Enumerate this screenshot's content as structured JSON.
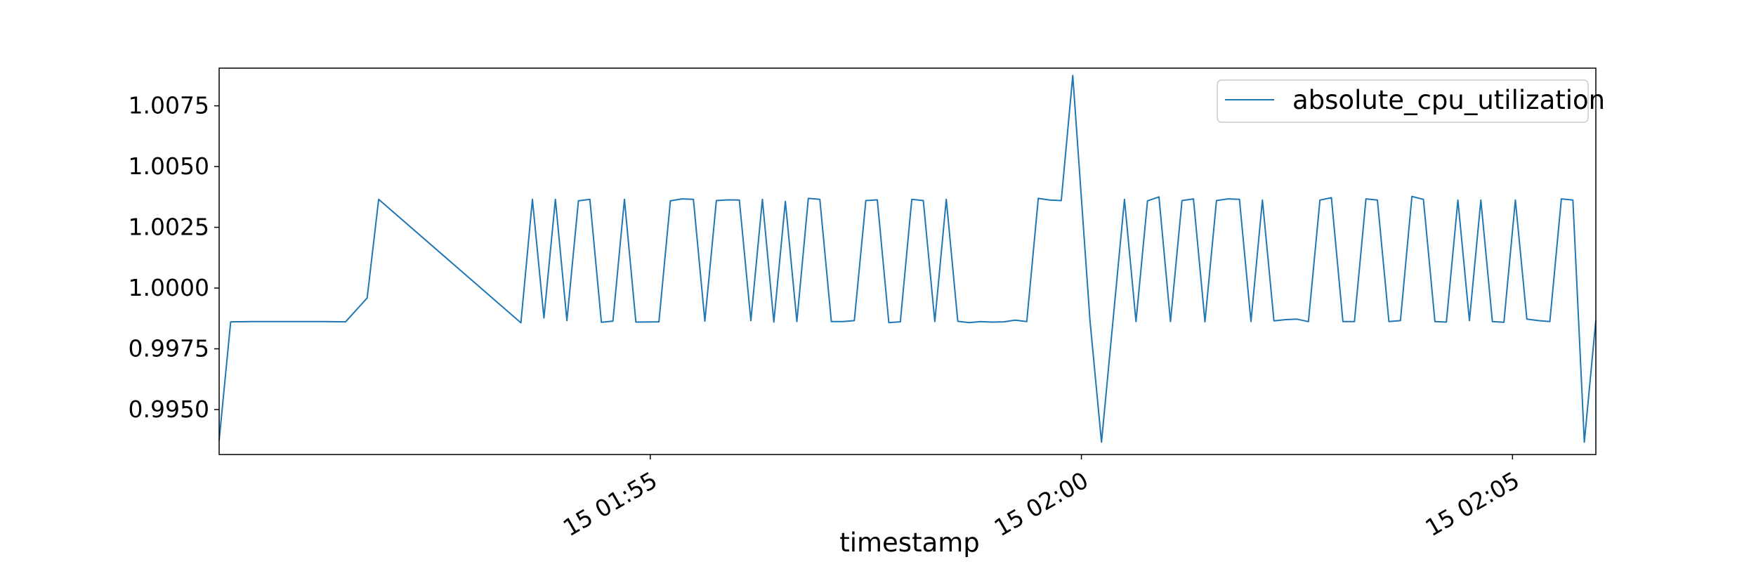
{
  "chart_data": {
    "type": "line",
    "title": "",
    "xlabel": "timestamp",
    "ylabel": "",
    "legend_position": "top-right",
    "grid": false,
    "x_tick_labels": [
      "15 01:55",
      "15 02:00",
      "15 02:05"
    ],
    "y_tick_labels": [
      "0.9950",
      "0.9975",
      "1.0000",
      "1.0025",
      "1.0050",
      "1.0075"
    ],
    "ylim": [
      0.99315,
      1.00905
    ],
    "series": [
      {
        "name": "absolute_cpu_utilization",
        "color": "#1f77b4",
        "points": [
          [
            "01:50:00",
            0.99373
          ],
          [
            "01:50:08",
            0.99861
          ],
          [
            "01:50:24",
            0.99862
          ],
          [
            "01:50:40",
            0.99862
          ],
          [
            "01:50:56",
            0.99862
          ],
          [
            "01:51:12",
            0.99862
          ],
          [
            "01:51:28",
            0.99861
          ],
          [
            "01:51:43",
            0.99959
          ],
          [
            "01:51:51",
            1.00365
          ],
          [
            "01:53:30",
            0.99857
          ],
          [
            "01:53:38",
            1.00365
          ],
          [
            "01:53:46",
            0.99877
          ],
          [
            "01:53:54",
            1.00365
          ],
          [
            "01:54:02",
            0.99866
          ],
          [
            "01:54:10",
            1.00359
          ],
          [
            "01:54:18",
            1.00365
          ],
          [
            "01:54:26",
            0.99859
          ],
          [
            "01:54:34",
            0.99864
          ],
          [
            "01:54:42",
            1.00365
          ],
          [
            "01:54:50",
            0.9986
          ],
          [
            "01:55:06",
            0.99861
          ],
          [
            "01:55:14",
            1.00359
          ],
          [
            "01:55:22",
            1.00367
          ],
          [
            "01:55:30",
            1.00365
          ],
          [
            "01:55:38",
            0.99864
          ],
          [
            "01:55:46",
            1.0036
          ],
          [
            "01:55:54",
            1.00363
          ],
          [
            "01:56:02",
            1.00362
          ],
          [
            "01:56:10",
            0.99866
          ],
          [
            "01:56:18",
            1.00365
          ],
          [
            "01:56:26",
            0.9986
          ],
          [
            "01:56:34",
            1.00357
          ],
          [
            "01:56:42",
            0.99862
          ],
          [
            "01:56:50",
            1.00369
          ],
          [
            "01:56:58",
            1.00365
          ],
          [
            "01:57:06",
            0.99862
          ],
          [
            "01:57:14",
            0.99862
          ],
          [
            "01:57:22",
            0.99866
          ],
          [
            "01:57:30",
            1.0036
          ],
          [
            "01:57:38",
            1.00363
          ],
          [
            "01:57:46",
            0.99858
          ],
          [
            "01:57:54",
            0.99861
          ],
          [
            "01:58:02",
            1.00365
          ],
          [
            "01:58:10",
            1.0036
          ],
          [
            "01:58:18",
            0.99862
          ],
          [
            "01:58:26",
            1.00365
          ],
          [
            "01:58:34",
            0.99863
          ],
          [
            "01:58:42",
            0.99858
          ],
          [
            "01:58:50",
            0.99862
          ],
          [
            "01:58:58",
            0.9986
          ],
          [
            "01:59:06",
            0.99861
          ],
          [
            "01:59:14",
            0.99868
          ],
          [
            "01:59:22",
            0.99862
          ],
          [
            "01:59:30",
            1.00369
          ],
          [
            "01:59:38",
            1.00362
          ],
          [
            "01:59:46",
            1.0036
          ],
          [
            "01:59:54",
            1.00875
          ],
          [
            "02:00:06",
            0.99866
          ],
          [
            "02:00:14",
            0.99366
          ],
          [
            "02:00:30",
            1.00365
          ],
          [
            "02:00:38",
            0.99862
          ],
          [
            "02:00:46",
            1.00359
          ],
          [
            "02:00:54",
            1.00375
          ],
          [
            "02:01:02",
            0.99862
          ],
          [
            "02:01:10",
            1.0036
          ],
          [
            "02:01:18",
            1.00367
          ],
          [
            "02:01:26",
            0.99861
          ],
          [
            "02:01:34",
            1.0036
          ],
          [
            "02:01:42",
            1.00367
          ],
          [
            "02:01:50",
            1.00365
          ],
          [
            "02:01:58",
            0.99862
          ],
          [
            "02:02:06",
            1.00362
          ],
          [
            "02:02:14",
            0.99865
          ],
          [
            "02:02:22",
            0.9987
          ],
          [
            "02:02:30",
            0.99872
          ],
          [
            "02:02:38",
            0.99862
          ],
          [
            "02:02:46",
            1.00362
          ],
          [
            "02:02:54",
            1.00372
          ],
          [
            "02:03:02",
            0.99862
          ],
          [
            "02:03:10",
            0.99862
          ],
          [
            "02:03:18",
            1.00367
          ],
          [
            "02:03:26",
            1.00362
          ],
          [
            "02:03:34",
            0.99862
          ],
          [
            "02:03:42",
            0.99866
          ],
          [
            "02:03:50",
            1.00377
          ],
          [
            "02:03:58",
            1.00365
          ],
          [
            "02:04:06",
            0.99862
          ],
          [
            "02:04:14",
            0.9986
          ],
          [
            "02:04:22",
            1.00362
          ],
          [
            "02:04:30",
            0.99866
          ],
          [
            "02:04:38",
            1.00362
          ],
          [
            "02:04:46",
            0.99862
          ],
          [
            "02:04:54",
            0.99859
          ],
          [
            "02:05:02",
            1.00362
          ],
          [
            "02:05:10",
            0.99872
          ],
          [
            "02:05:18",
            0.99866
          ],
          [
            "02:05:26",
            0.99862
          ],
          [
            "02:05:34",
            1.00367
          ],
          [
            "02:05:42",
            1.00362
          ],
          [
            "02:05:50",
            0.99366
          ],
          [
            "02:05:58",
            0.99868
          ]
        ]
      }
    ]
  }
}
